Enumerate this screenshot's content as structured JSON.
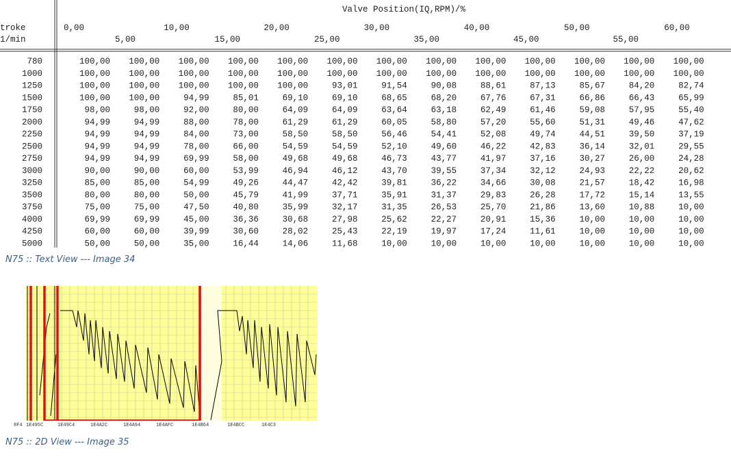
{
  "table": {
    "title": "Valve Position(IQ,RPM)/%",
    "row_header": [
      "troke",
      "1/min"
    ],
    "columns_top": [
      "0,00",
      "10,00",
      "20,00",
      "30,00",
      "40,00",
      "50,00",
      "60,00"
    ],
    "columns_bottom": [
      "5,00",
      "15,00",
      "25,00",
      "35,00",
      "45,00",
      "55,00"
    ],
    "rows": [
      [
        "780",
        "100,00",
        "100,00",
        "100,00",
        "100,00",
        "100,00",
        "100,00",
        "100,00",
        "100,00",
        "100,00",
        "100,00",
        "100,00",
        "100,00",
        "100,00"
      ],
      [
        "1000",
        "100,00",
        "100,00",
        "100,00",
        "100,00",
        "100,00",
        "100,00",
        "100,00",
        "100,00",
        "100,00",
        "100,00",
        "100,00",
        "100,00",
        "100,00"
      ],
      [
        "1250",
        "100,00",
        "100,00",
        "100,00",
        "100,00",
        "100,00",
        "93,01",
        "91,54",
        "90,08",
        "88,61",
        "87,13",
        "85,67",
        "84,20",
        "82,74"
      ],
      [
        "1500",
        "100,00",
        "100,00",
        "94,99",
        "85,01",
        "69,10",
        "69,10",
        "68,65",
        "68,20",
        "67,76",
        "67,31",
        "66,86",
        "66,43",
        "65,99"
      ],
      [
        "1750",
        "98,00",
        "98,00",
        "92,00",
        "80,00",
        "64,09",
        "64,09",
        "63,64",
        "63,18",
        "62,49",
        "61,46",
        "59,08",
        "57,95",
        "55,40"
      ],
      [
        "2000",
        "94,99",
        "94,99",
        "88,00",
        "78,00",
        "61,29",
        "61,29",
        "60,05",
        "58,80",
        "57,20",
        "55,60",
        "51,31",
        "49,46",
        "47,62"
      ],
      [
        "2250",
        "94,99",
        "94,99",
        "84,00",
        "73,00",
        "58,50",
        "58,50",
        "56,46",
        "54,41",
        "52,08",
        "49,74",
        "44,51",
        "39,50",
        "37,19"
      ],
      [
        "2500",
        "94,99",
        "94,99",
        "78,00",
        "66,00",
        "54,59",
        "54,59",
        "52,10",
        "49,60",
        "46,22",
        "42,83",
        "36,14",
        "32,01",
        "29,55"
      ],
      [
        "2750",
        "94,99",
        "94,99",
        "69,99",
        "58,00",
        "49,68",
        "49,68",
        "46,73",
        "43,77",
        "41,97",
        "37,16",
        "30,27",
        "26,00",
        "24,28"
      ],
      [
        "3000",
        "90,00",
        "90,00",
        "60,00",
        "53,99",
        "46,94",
        "46,12",
        "43,70",
        "39,55",
        "37,34",
        "32,12",
        "24,93",
        "22,22",
        "20,62"
      ],
      [
        "3250",
        "85,00",
        "85,00",
        "54,99",
        "49,26",
        "44,47",
        "42,42",
        "39,81",
        "36,22",
        "34,66",
        "30,08",
        "21,57",
        "18,42",
        "16,98"
      ],
      [
        "3500",
        "80,00",
        "80,00",
        "50,00",
        "45,79",
        "41,99",
        "37,71",
        "35,91",
        "31,37",
        "29,83",
        "26,28",
        "17,72",
        "15,14",
        "13,55"
      ],
      [
        "3750",
        "75,00",
        "75,00",
        "47,50",
        "40,80",
        "35,99",
        "32,17",
        "31,35",
        "26,53",
        "25,70",
        "21,86",
        "13,60",
        "10,88",
        "10,00"
      ],
      [
        "4000",
        "69,99",
        "69,99",
        "45,00",
        "36,36",
        "30,68",
        "27,98",
        "25,62",
        "22,27",
        "20,91",
        "15,36",
        "10,00",
        "10,00",
        "10,00"
      ],
      [
        "4250",
        "60,00",
        "60,00",
        "39,99",
        "30,60",
        "28,02",
        "25,43",
        "22,19",
        "19,97",
        "17,24",
        "11,61",
        "10,00",
        "10,00",
        "10,00"
      ],
      [
        "5000",
        "50,00",
        "50,00",
        "35,00",
        "16,44",
        "14,06",
        "11,68",
        "10,00",
        "10,00",
        "10,00",
        "10,00",
        "10,00",
        "10,00",
        "10,00"
      ]
    ]
  },
  "caption_1": "N75 :: Text View --- Image 34",
  "view_2d": {
    "axis_labels": [
      "8F4",
      "1E495C",
      "1E49C4",
      "1E4A2C",
      "1E4A94",
      "1E4AFC",
      "1E4B64",
      "1E4BCC",
      "1E4C3"
    ]
  },
  "caption_2": "N75 :: 2D View --- Image 35"
}
